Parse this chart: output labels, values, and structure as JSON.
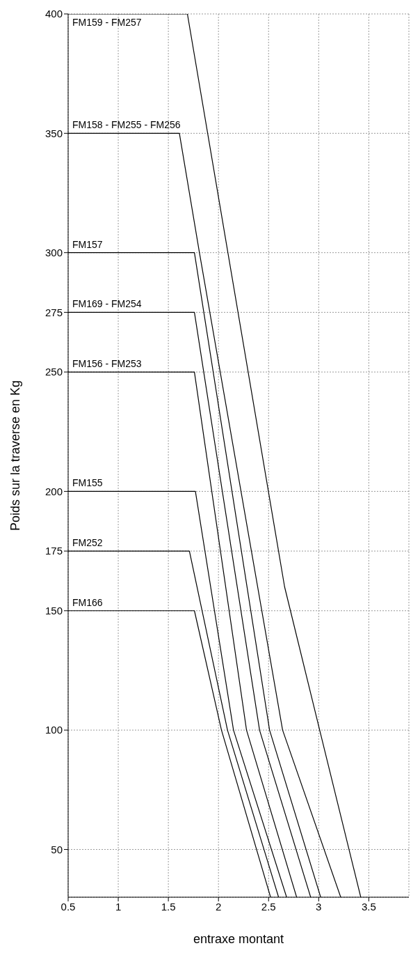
{
  "chart_data": {
    "type": "line",
    "xlabel": "entraxe montant",
    "ylabel": "Poids sur la traverse en Kg",
    "xlim": [
      0.5,
      3.9
    ],
    "xticks": [
      0.5,
      1,
      1.5,
      2,
      2.5,
      3,
      3.5
    ],
    "ylim": [
      30,
      400
    ],
    "yticks": [
      50,
      100,
      150,
      175,
      200,
      250,
      275,
      300,
      350,
      400
    ],
    "grid": true,
    "legend": false,
    "marker": "none",
    "line_style": "solid",
    "series": [
      {
        "name": "FM159 - FM257",
        "color": "#000000",
        "x": [
          0.5,
          1.69,
          2.66,
          3.01,
          3.42
        ],
        "values": [
          400,
          400,
          160,
          100,
          30
        ]
      },
      {
        "name": "FM158 - FM255 - FM256",
        "color": "#000000",
        "x": [
          0.5,
          1.61,
          1.81,
          2.64,
          3.22
        ],
        "values": [
          350,
          350,
          300,
          100,
          30
        ]
      },
      {
        "name": "FM157",
        "color": "#000000",
        "x": [
          0.5,
          1.76,
          2.51,
          3.02
        ],
        "values": [
          300,
          300,
          100,
          30
        ]
      },
      {
        "name": "FM169 - FM254",
        "color": "#000000",
        "x": [
          0.5,
          1.76,
          2.41,
          2.92
        ],
        "values": [
          275,
          275,
          100,
          30
        ]
      },
      {
        "name": "FM156 - FM253",
        "color": "#000000",
        "x": [
          0.5,
          1.76,
          2.28,
          2.78
        ],
        "values": [
          250,
          250,
          100,
          30
        ]
      },
      {
        "name": "FM155",
        "color": "#000000",
        "x": [
          0.5,
          1.77,
          2.15,
          2.68
        ],
        "values": [
          200,
          200,
          100,
          30
        ]
      },
      {
        "name": "FM252",
        "color": "#000000",
        "x": [
          0.5,
          1.71,
          2.09,
          2.6
        ],
        "values": [
          175,
          175,
          100,
          30
        ]
      },
      {
        "name": "FM166",
        "color": "#000000",
        "x": [
          0.5,
          1.76,
          2.03,
          2.52
        ],
        "values": [
          150,
          150,
          100,
          30
        ]
      }
    ]
  }
}
